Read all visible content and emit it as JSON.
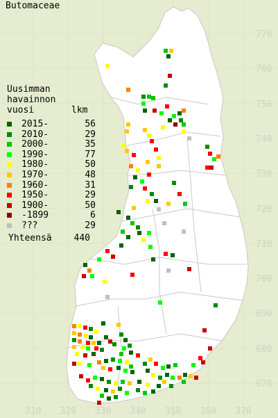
{
  "title": "Butomaceae",
  "legend": {
    "heading_lines": [
      "Uusimman",
      "havainnon",
      "vuosi"
    ],
    "count_header": "lkm",
    "items": [
      {
        "label": "2015-",
        "count": "56",
        "color": "#006400"
      },
      {
        "label": "2010-",
        "count": "29",
        "color": "#008c00"
      },
      {
        "label": "2000-",
        "count": "35",
        "color": "#00c800"
      },
      {
        "label": "1990-",
        "count": "77",
        "color": "#00ff00"
      },
      {
        "label": "1980-",
        "count": "50",
        "color": "#ffff00"
      },
      {
        "label": "1970-",
        "count": "48",
        "color": "#ffc800"
      },
      {
        "label": "1960-",
        "count": "31",
        "color": "#ff8000"
      },
      {
        "label": "1950-",
        "count": "29",
        "color": "#ff0000"
      },
      {
        "label": "1900-",
        "count": "50",
        "color": "#c80000"
      },
      {
        "label": "-1899",
        "count": "6",
        "color": "#8b0000"
      },
      {
        "label": "???",
        "count": "29",
        "color": "#c0c0c0"
      }
    ],
    "total_label": "Yhteensä",
    "total_count": "440"
  },
  "axes": {
    "y_ticks": [
      "770",
      "760",
      "750",
      "740",
      "730",
      "720",
      "710",
      "700",
      "690",
      "680",
      "670"
    ],
    "x_ticks": [
      "310",
      "320",
      "330",
      "340",
      "350",
      "360",
      "370"
    ]
  },
  "colors": {
    "background": "#e6eccf",
    "land": "#ffffff",
    "border": "#c8c8c8"
  }
}
